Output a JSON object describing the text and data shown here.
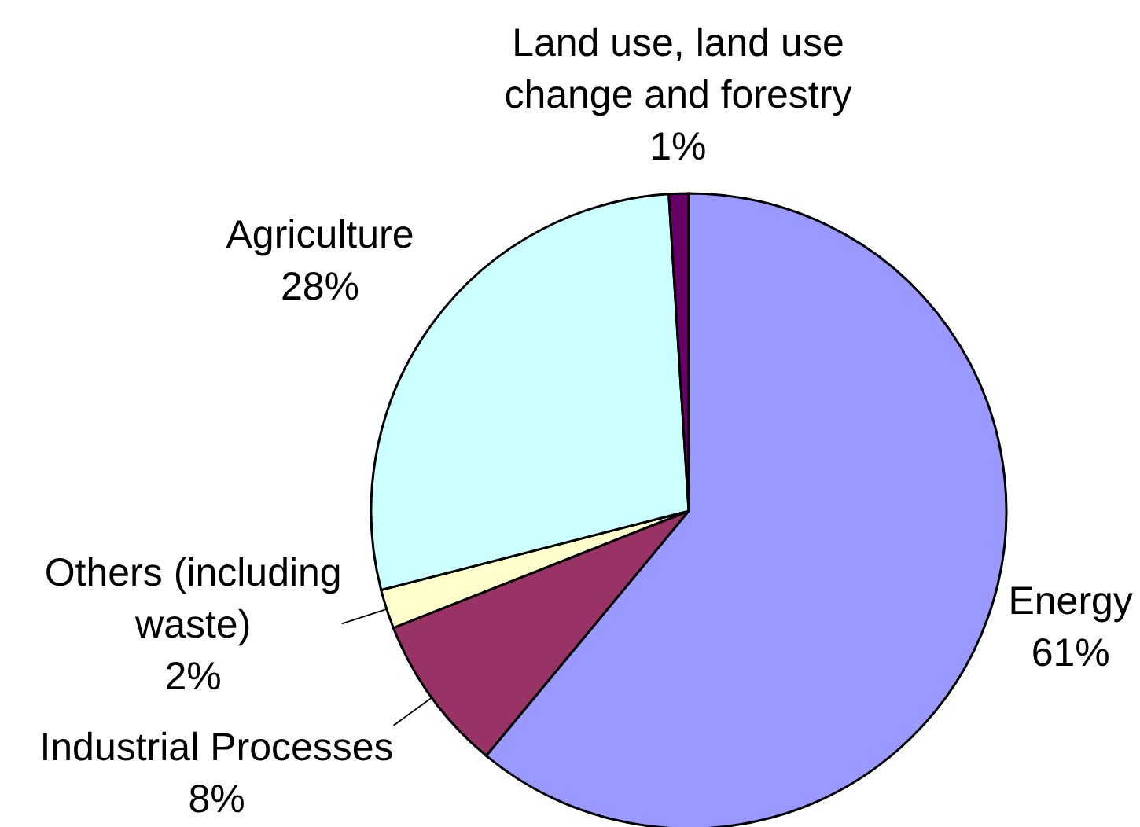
{
  "chart_data": {
    "type": "pie",
    "categories": [
      "Energy",
      "Industrial Processes",
      "Others (including waste)",
      "Agriculture",
      "Land use, land use change and forestry"
    ],
    "values": [
      61,
      8,
      2,
      28,
      1
    ],
    "colors": [
      "#9999ff",
      "#993366",
      "#ffffcc",
      "#ccffff",
      "#660066"
    ],
    "value_labels": [
      "61%",
      "8%",
      "2%",
      "28%",
      "1%"
    ]
  }
}
